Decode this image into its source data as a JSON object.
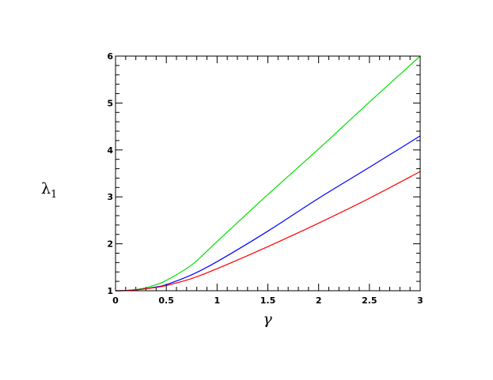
{
  "chart_data": {
    "type": "line",
    "title": "",
    "xlabel": "γ",
    "ylabel": "λ",
    "ylabel_subscript": "1",
    "xlim": [
      0,
      3
    ],
    "ylim": [
      1,
      6
    ],
    "xticks": [
      0,
      0.5,
      1,
      1.5,
      2,
      2.5,
      3
    ],
    "xtick_labels": [
      "0",
      "0.5",
      "1",
      "1.5",
      "2",
      "2.5",
      "3"
    ],
    "yticks": [
      1,
      2,
      3,
      4,
      5,
      6
    ],
    "ytick_labels": [
      "1",
      "2",
      "3",
      "4",
      "5",
      "6"
    ],
    "x_minor_step": 0.1,
    "y_minor_step": 0.2,
    "grid": false,
    "legend": "none",
    "series": [
      {
        "color": "#00e000",
        "x": [
          0,
          0.1,
          0.25,
          0.4,
          0.5,
          0.75,
          1,
          1.5,
          2,
          2.5,
          3
        ],
        "y": [
          1,
          1.005,
          1.04,
          1.13,
          1.22,
          1.55,
          2.05,
          3.05,
          4.02,
          5.02,
          6.0
        ]
      },
      {
        "color": "#0000ff",
        "x": [
          0,
          0.1,
          0.25,
          0.4,
          0.5,
          0.75,
          1,
          1.5,
          2,
          2.5,
          3
        ],
        "y": [
          1,
          1.004,
          1.03,
          1.08,
          1.13,
          1.34,
          1.62,
          2.27,
          2.97,
          3.63,
          4.3
        ]
      },
      {
        "color": "#ff0000",
        "x": [
          0,
          0.1,
          0.25,
          0.4,
          0.5,
          0.75,
          1,
          1.5,
          2,
          2.5,
          3
        ],
        "y": [
          1,
          1.004,
          1.03,
          1.07,
          1.11,
          1.26,
          1.47,
          1.94,
          2.44,
          2.97,
          3.54
        ]
      }
    ]
  }
}
